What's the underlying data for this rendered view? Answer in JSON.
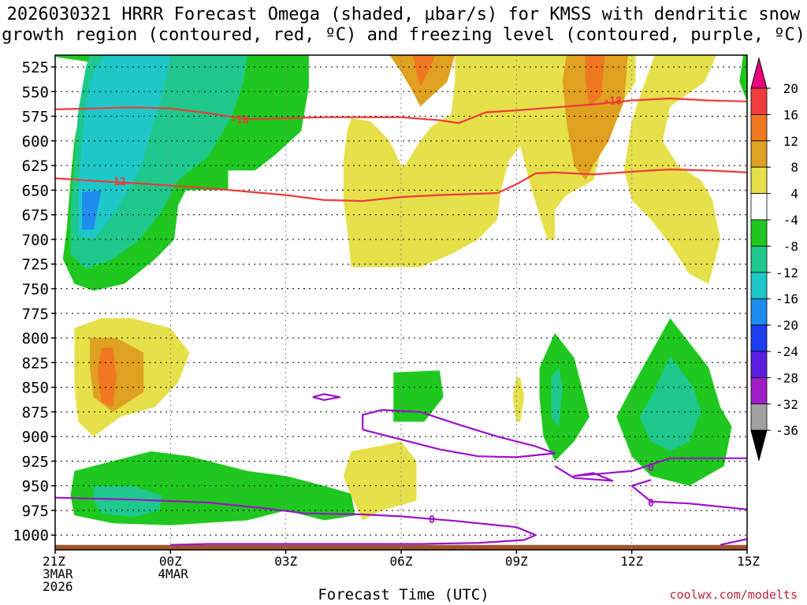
{
  "chart_data": {
    "type": "time-height cross section",
    "title_line1": "2026030321 HRRR Forecast Omega (shaded, μbar/s) for KMSS with dendritic snow",
    "title_line2": "growth region (contoured, red, ºC) and freezing level (contoured, purple, ºC)",
    "xlabel": "Forecast Time (UTC)",
    "x_ticks": [
      {
        "h": 0,
        "label": "21Z",
        "sub1": "3MAR",
        "sub2": "2026"
      },
      {
        "h": 3,
        "label": "00Z",
        "sub1": "4MAR",
        "sub2": ""
      },
      {
        "h": 6,
        "label": "03Z",
        "sub1": "",
        "sub2": ""
      },
      {
        "h": 9,
        "label": "06Z",
        "sub1": "",
        "sub2": ""
      },
      {
        "h": 12,
        "label": "09Z",
        "sub1": "",
        "sub2": ""
      },
      {
        "h": 15,
        "label": "12Z",
        "sub1": "",
        "sub2": ""
      },
      {
        "h": 18,
        "label": "15Z",
        "sub1": "",
        "sub2": ""
      }
    ],
    "xlim": [
      0,
      18
    ],
    "ylim": [
      1015,
      513
    ],
    "y_ticks": [
      525,
      550,
      575,
      600,
      625,
      650,
      675,
      700,
      725,
      750,
      775,
      800,
      825,
      850,
      875,
      900,
      925,
      950,
      975,
      1000
    ],
    "colorbar": {
      "levels": [
        "20",
        "16",
        "12",
        "8",
        "4",
        "-4",
        "-8",
        "-12",
        "-16",
        "-20",
        "-24",
        "-28",
        "-32",
        "-36"
      ],
      "colors": [
        "#e8007a",
        "#f03c3c",
        "#f07820",
        "#e0a020",
        "#e6e04a",
        "#ffffff",
        "#1ec81e",
        "#1ec88c",
        "#1ec8c8",
        "#1e8cf0",
        "#1e3cf0",
        "#5a1ee0",
        "#a01ec8",
        "#a0a0a0",
        "#000000"
      ]
    },
    "contours": [
      {
        "name": "dendritic -12C",
        "color": "#ee3a3a",
        "label": "-12",
        "points": [
          [
            0,
            638
          ],
          [
            1.2,
            641
          ],
          [
            2.5,
            644
          ],
          [
            4,
            648
          ],
          [
            6,
            655
          ],
          [
            7,
            660
          ],
          [
            8,
            661
          ],
          [
            9,
            657
          ],
          [
            10,
            655
          ],
          [
            11.5,
            653
          ],
          [
            12,
            644
          ],
          [
            12.5,
            633
          ],
          [
            13,
            632
          ],
          [
            14,
            634
          ],
          [
            15.5,
            630
          ],
          [
            16,
            629
          ],
          [
            17,
            630
          ],
          [
            18,
            632
          ]
        ]
      },
      {
        "name": "dendritic -18C",
        "color": "#ee3a3a",
        "label": "-18",
        "points": [
          [
            0,
            568
          ],
          [
            1,
            567
          ],
          [
            2,
            566
          ],
          [
            3,
            567
          ],
          [
            4,
            572
          ],
          [
            5,
            578
          ],
          [
            6,
            577
          ],
          [
            7,
            576
          ],
          [
            8,
            576
          ],
          [
            9,
            576
          ],
          [
            10,
            579
          ],
          [
            10.5,
            582
          ],
          [
            11.2,
            571
          ],
          [
            12,
            569
          ],
          [
            13,
            566
          ],
          [
            14,
            563
          ],
          [
            15,
            559
          ],
          [
            16,
            557
          ],
          [
            17,
            559
          ],
          [
            18,
            560
          ]
        ]
      },
      {
        "name": "freezing level 0C",
        "color": "#9a12c8",
        "label": "0",
        "points": [
          [
            0,
            962
          ],
          [
            2,
            964
          ],
          [
            4,
            967
          ],
          [
            5.5,
            973
          ],
          [
            6.5,
            978
          ],
          [
            8,
            979
          ],
          [
            9,
            981
          ],
          [
            10.5,
            986
          ],
          [
            12,
            992
          ],
          [
            12.5,
            1000
          ],
          [
            12.2,
            1005
          ],
          [
            11,
            1008
          ],
          [
            9.5,
            1009
          ],
          [
            8,
            1009
          ],
          [
            6,
            1009
          ],
          [
            4,
            1009
          ],
          [
            3,
            1010
          ]
        ]
      },
      {
        "name": "freezing level 0C (upper)",
        "color": "#9a12c8",
        "label": "",
        "points": [
          [
            8,
            893
          ],
          [
            9,
            903
          ],
          [
            10,
            913
          ],
          [
            11,
            920
          ],
          [
            12,
            921
          ],
          [
            13,
            917
          ],
          [
            12.5,
            910
          ],
          [
            11.5,
            900
          ],
          [
            10.5,
            888
          ],
          [
            9.5,
            875
          ],
          [
            8.5,
            873
          ],
          [
            8,
            878
          ],
          [
            8,
            893
          ]
        ]
      },
      {
        "name": "freezing level 0C (east)",
        "color": "#9a12c8",
        "label": "0",
        "points": [
          [
            13,
            930
          ],
          [
            13.5,
            942
          ],
          [
            14.5,
            945
          ],
          [
            14,
            937
          ],
          [
            13.5,
            940
          ],
          [
            15,
            935
          ],
          [
            16,
            922
          ],
          [
            17,
            922
          ],
          [
            18,
            922
          ]
        ]
      },
      {
        "name": "freezing level 0C (east low)",
        "color": "#9a12c8",
        "label": "0",
        "points": [
          [
            15.5,
            944
          ],
          [
            15,
            950
          ],
          [
            15.5,
            966
          ],
          [
            16.5,
            968
          ],
          [
            17.5,
            972
          ],
          [
            18,
            974
          ]
        ]
      },
      {
        "name": "freezing level 0C (small)",
        "color": "#9a12c8",
        "label": "",
        "points": [
          [
            6.7,
            860
          ],
          [
            7,
            857
          ],
          [
            7.4,
            860
          ],
          [
            7,
            863
          ],
          [
            6.7,
            860
          ]
        ]
      },
      {
        "name": "freezing level 0C (surface)",
        "color": "#9a12c8",
        "label": "",
        "points": [
          [
            17.3,
            1010
          ],
          [
            18,
            1004
          ]
        ]
      }
    ],
    "terrain_color": "#a0522d",
    "credit": "coolwx.com/modelts"
  }
}
